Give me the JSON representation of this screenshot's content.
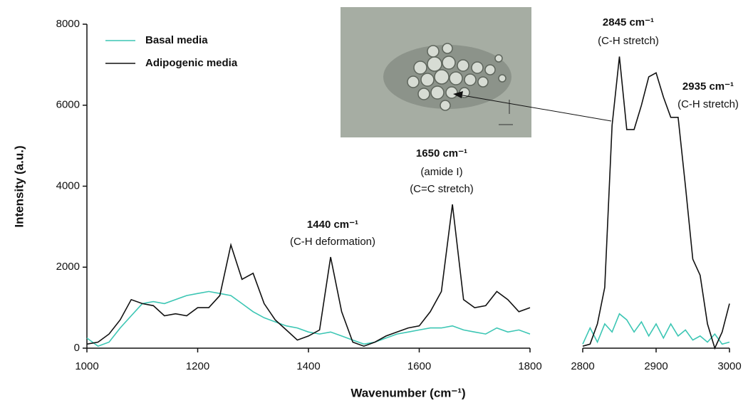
{
  "chart_data": [
    {
      "type": "line",
      "x_label": "Wavenumber (cm⁻¹)",
      "y_label": "Intensity (a.u.)",
      "x": [
        1000,
        1020,
        1040,
        1060,
        1080,
        1100,
        1120,
        1140,
        1160,
        1180,
        1200,
        1220,
        1240,
        1260,
        1280,
        1300,
        1320,
        1340,
        1360,
        1380,
        1400,
        1420,
        1440,
        1460,
        1480,
        1500,
        1520,
        1540,
        1560,
        1580,
        1600,
        1620,
        1640,
        1660,
        1680,
        1700,
        1720,
        1740,
        1760,
        1780,
        1800
      ],
      "series": [
        {
          "name": "Basal media",
          "color": "#3cc6b4",
          "values": [
            250,
            50,
            150,
            500,
            800,
            1100,
            1150,
            1100,
            1200,
            1300,
            1350,
            1400,
            1350,
            1300,
            1100,
            900,
            750,
            650,
            550,
            500,
            400,
            350,
            400,
            300,
            200,
            100,
            150,
            250,
            350,
            400,
            450,
            500,
            500,
            550,
            450,
            400,
            350,
            500,
            400,
            450,
            350
          ]
        },
        {
          "name": "Adipogenic media",
          "color": "#111111",
          "values": [
            100,
            150,
            350,
            700,
            1200,
            1100,
            1050,
            800,
            850,
            800,
            1000,
            1000,
            1300,
            2550,
            1700,
            1850,
            1100,
            700,
            450,
            200,
            300,
            450,
            2250,
            900,
            150,
            50,
            150,
            300,
            400,
            500,
            550,
            900,
            1400,
            3550,
            1200,
            1000,
            1050,
            1400,
            1200,
            900,
            1000
          ]
        }
      ],
      "xlim": [
        1000,
        1800
      ],
      "xticks": [
        1000,
        1200,
        1400,
        1600,
        1800
      ],
      "ylim": [
        0,
        8000
      ],
      "yticks": [
        0,
        2000,
        4000,
        6000,
        8000
      ],
      "legend": "upper left",
      "annotations": [
        {
          "label": "1440 cm⁻¹",
          "notes": [
            "(C-H deformation)"
          ]
        },
        {
          "label": "1650 cm⁻¹",
          "notes": [
            "(amide  I)",
            "(C=C stretch)"
          ]
        }
      ]
    },
    {
      "type": "line",
      "x": [
        2800,
        2810,
        2820,
        2830,
        2840,
        2850,
        2860,
        2870,
        2880,
        2890,
        2900,
        2910,
        2920,
        2930,
        2940,
        2950,
        2960,
        2970,
        2980,
        2990,
        3000
      ],
      "series": [
        {
          "color": "#3cc6b4",
          "values": [
            100,
            500,
            150,
            600,
            400,
            850,
            700,
            400,
            650,
            300,
            600,
            250,
            600,
            300,
            450,
            200,
            300,
            150,
            350,
            100,
            150
          ]
        },
        {
          "color": "#111111",
          "values": [
            50,
            100,
            600,
            1500,
            5500,
            7200,
            5400,
            5400,
            6000,
            6700,
            6800,
            6200,
            5700,
            5700,
            4000,
            2200,
            1800,
            600,
            0,
            400,
            1100
          ]
        }
      ],
      "xlim": [
        2800,
        3000
      ],
      "xticks": [
        2800,
        2900,
        3000
      ],
      "ylim": [
        0,
        8000
      ],
      "annotations": [
        {
          "label": "2845 cm⁻¹",
          "notes": [
            "(C-H stretch)"
          ]
        },
        {
          "label": "2935 cm⁻¹",
          "notes": [
            "(C-H stretch)"
          ]
        }
      ]
    }
  ]
}
